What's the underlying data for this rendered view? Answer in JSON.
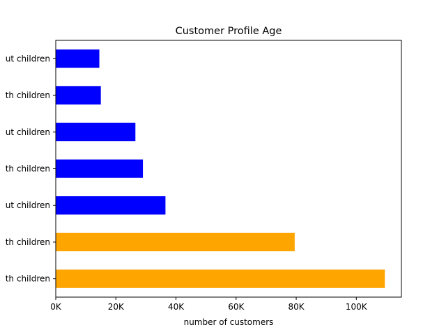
{
  "chart_data": {
    "type": "bar",
    "orientation": "horizontal",
    "title": "Customer Profile Age",
    "xlabel": "number of customers",
    "ylabel": "",
    "xlim": [
      0,
      115000
    ],
    "x_ticks": [
      {
        "value": 0,
        "label": "0K"
      },
      {
        "value": 20000,
        "label": "20K"
      },
      {
        "value": 40000,
        "label": "40K"
      },
      {
        "value": 60000,
        "label": "60K"
      },
      {
        "value": 80000,
        "label": "80K"
      },
      {
        "value": 100000,
        "label": "100K"
      }
    ],
    "categories": [
      "ut children",
      "th children",
      "ut children",
      "th children",
      "ut children",
      "th children",
      "th children"
    ],
    "values": [
      14500,
      15000,
      26500,
      29000,
      36500,
      79500,
      109500
    ],
    "bar_colors": [
      "#0000ff",
      "#0000ff",
      "#0000ff",
      "#0000ff",
      "#0000ff",
      "#ffa500",
      "#ffa500"
    ],
    "grid": false,
    "legend": "none"
  }
}
